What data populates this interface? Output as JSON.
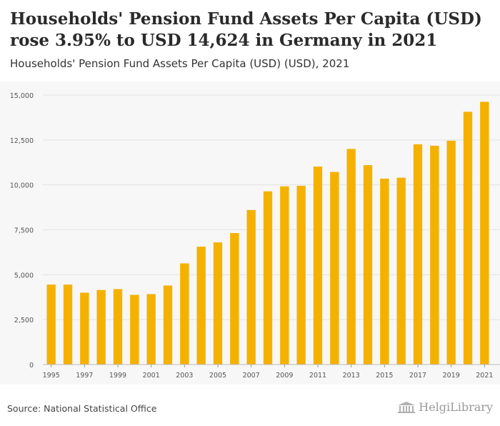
{
  "header": {
    "title": "Households' Pension Fund Assets Per Capita (USD) rose 3.95% to USD 14,624 in Germany in 2021",
    "subtitle": "Households' Pension Fund Assets Per Capita (USD) (USD), 2021"
  },
  "footer": {
    "source": "Source: National Statistical Office",
    "brand": "HelgiLibrary"
  },
  "colors": {
    "bar": "#f5b100",
    "grid": "#e2e2e2",
    "axis_text": "#555555",
    "plot_bg": "#f7f7f7"
  },
  "chart_data": {
    "type": "bar",
    "title": "Households' Pension Fund Assets Per Capita (USD) rose 3.95% to USD 14,624 in Germany in 2021",
    "subtitle": "Households' Pension Fund Assets Per Capita (USD) (USD), 2021",
    "xlabel": "",
    "ylabel": "",
    "ylim": [
      0,
      15000
    ],
    "yticks": [
      0,
      2500,
      5000,
      7500,
      10000,
      12500,
      15000
    ],
    "ytick_labels": [
      "0",
      "2,500",
      "5,000",
      "7,500",
      "10,000",
      "12,500",
      "15,000"
    ],
    "grid": true,
    "categories": [
      "1995",
      "1996",
      "1997",
      "1998",
      "1999",
      "2000",
      "2001",
      "2002",
      "2003",
      "2004",
      "2005",
      "2006",
      "2007",
      "2008",
      "2009",
      "2010",
      "2011",
      "2012",
      "2013",
      "2014",
      "2015",
      "2016",
      "2017",
      "2018",
      "2019",
      "2020",
      "2021"
    ],
    "xtick_labels": [
      "1995",
      "",
      "1997",
      "",
      "1999",
      "",
      "2001",
      "",
      "2003",
      "",
      "2005",
      "",
      "2007",
      "",
      "2009",
      "",
      "2011",
      "",
      "2013",
      "",
      "2015",
      "",
      "2017",
      "",
      "2019",
      "",
      "2021"
    ],
    "series": [
      {
        "name": "Households' Pension Fund Assets Per Capita (USD)",
        "values": [
          4450,
          4450,
          4000,
          4150,
          4200,
          3880,
          3920,
          4400,
          5630,
          6560,
          6800,
          7320,
          8600,
          9640,
          9920,
          9950,
          11020,
          10720,
          12000,
          11100,
          10350,
          10400,
          12260,
          12180,
          12460,
          14070,
          14624
        ]
      }
    ]
  }
}
